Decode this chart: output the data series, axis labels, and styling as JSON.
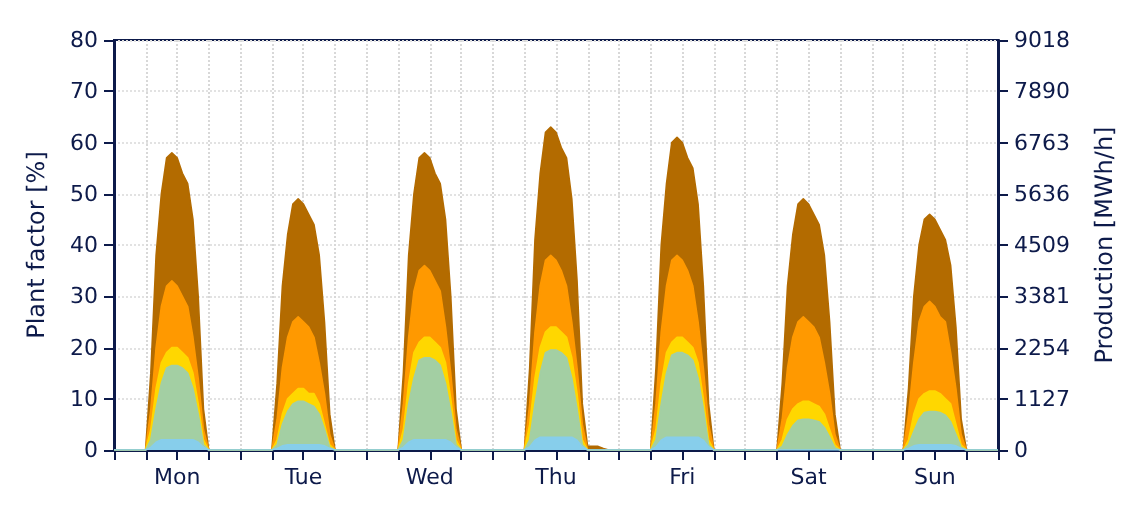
{
  "chart_data": {
    "type": "area",
    "ylabel": "Plant factor [%]",
    "y2label": "Production [MWh/h]",
    "categories": [
      null,
      null,
      null,
      null,
      null,
      null,
      null,
      null,
      null,
      null,
      null,
      null,
      "Mon",
      null,
      null,
      null,
      null,
      null,
      null,
      null,
      null,
      null,
      null,
      null,
      null,
      null,
      null,
      null,
      null,
      null,
      null,
      null,
      null,
      null,
      null,
      null,
      "Tue",
      null,
      null,
      null,
      null,
      null,
      null,
      null,
      null,
      null,
      null,
      null,
      null,
      null,
      null,
      null,
      null,
      null,
      null,
      null,
      null,
      null,
      null,
      null,
      "Wed",
      null,
      null,
      null,
      null,
      null,
      null,
      null,
      null,
      null,
      null,
      null,
      null,
      null,
      null,
      null,
      null,
      null,
      null,
      null,
      null,
      null,
      null,
      null,
      "Thu",
      null,
      null,
      null,
      null,
      null,
      null,
      null,
      null,
      null,
      null,
      null,
      null,
      null,
      null,
      null,
      null,
      null,
      null,
      null,
      null,
      null,
      null,
      null,
      "Fri",
      null,
      null,
      null,
      null,
      null,
      null,
      null,
      null,
      null,
      null,
      null,
      null,
      null,
      null,
      null,
      null,
      null,
      null,
      null,
      null,
      null,
      null,
      null,
      "Sat",
      null,
      null,
      null,
      null,
      null,
      null,
      null,
      null,
      null,
      null,
      null,
      null,
      null,
      null,
      null,
      null,
      null,
      null,
      null,
      null,
      null,
      null,
      null,
      "Sun",
      null,
      null,
      null,
      null,
      null,
      null,
      null,
      null,
      null,
      null,
      null,
      null
    ],
    "series": [
      {
        "color": "#b36b00",
        "values": [
          0,
          0,
          0,
          0,
          0,
          0,
          0,
          15,
          38,
          50,
          57,
          58,
          57,
          54,
          52,
          45,
          30,
          8,
          0,
          0,
          0,
          0,
          0,
          0,
          0,
          0,
          0,
          0,
          0,
          0,
          0,
          13,
          32,
          42,
          48,
          49,
          48,
          46,
          44,
          38,
          25,
          7,
          0,
          0,
          0,
          0,
          0,
          0,
          0,
          0,
          0,
          0,
          0,
          0,
          0,
          15,
          38,
          50,
          57,
          58,
          57,
          54,
          52,
          45,
          30,
          8,
          0,
          0,
          0,
          0,
          0,
          0,
          0,
          0,
          0,
          0,
          0,
          0,
          0,
          16,
          41,
          54,
          62,
          63,
          62,
          59,
          57,
          49,
          33,
          9,
          0.7,
          0.7,
          0.7,
          0.3,
          0,
          0,
          0,
          0,
          0,
          0,
          0,
          0,
          0,
          16,
          40,
          52,
          60,
          61,
          60,
          57,
          55,
          48,
          32,
          9,
          0,
          0,
          0,
          0,
          0,
          0,
          0,
          0,
          0,
          0,
          0,
          0,
          0,
          13,
          32,
          42,
          48,
          49,
          48,
          46,
          44,
          38,
          25,
          7,
          0,
          0,
          0,
          0,
          0,
          0,
          0,
          0,
          0,
          0,
          0,
          0,
          0,
          12,
          30,
          40,
          45,
          46,
          45,
          43,
          41,
          36,
          24,
          6,
          0,
          0,
          0,
          0,
          0,
          0,
          0
        ]
      },
      {
        "color": "#ff9900",
        "values": [
          0,
          0,
          0,
          0,
          0,
          0,
          0,
          8,
          20,
          28,
          32,
          33,
          32,
          30,
          28,
          22,
          14,
          4,
          0,
          0,
          0,
          0,
          0,
          0,
          0,
          0,
          0,
          0,
          0,
          0,
          0,
          6,
          16,
          22,
          25,
          26,
          25,
          24,
          22,
          17,
          11,
          3,
          0,
          0,
          0,
          0,
          0,
          0,
          0,
          0,
          0,
          0,
          0,
          0,
          0,
          9,
          22,
          31,
          35,
          36,
          35,
          33,
          31,
          24,
          15,
          4,
          0,
          0,
          0,
          0,
          0,
          0,
          0,
          0,
          0,
          0,
          0,
          0,
          0,
          9,
          23,
          32,
          37,
          38,
          37,
          35,
          32,
          25,
          16,
          5,
          0,
          0,
          0,
          0,
          0,
          0,
          0,
          0,
          0,
          0,
          0,
          0,
          0,
          9,
          23,
          32,
          37,
          38,
          37,
          35,
          32,
          25,
          16,
          5,
          0,
          0,
          0,
          0,
          0,
          0,
          0,
          0,
          0,
          0,
          0,
          0,
          0,
          6,
          16,
          22,
          25,
          26,
          25,
          24,
          22,
          17,
          11,
          3,
          0,
          0,
          0,
          0,
          0,
          0,
          0,
          0,
          0,
          0,
          0,
          0,
          0,
          7,
          17,
          25,
          28,
          29,
          28,
          26,
          25,
          19,
          12,
          3,
          0,
          0,
          0,
          0,
          0,
          0,
          0
        ]
      },
      {
        "color": "#ffd700",
        "values": [
          0,
          0,
          0,
          0,
          0,
          0,
          0,
          4,
          12,
          17,
          19,
          20,
          20,
          19,
          18,
          15,
          9,
          2,
          0,
          0,
          0,
          0,
          0,
          0,
          0,
          0,
          0,
          0,
          0,
          0,
          0,
          2,
          7,
          10,
          11,
          12,
          12,
          11,
          11,
          9,
          5,
          1,
          0,
          0,
          0,
          0,
          0,
          0,
          0,
          0,
          0,
          0,
          0,
          0,
          0,
          4,
          13,
          19,
          21,
          22,
          22,
          21,
          20,
          17,
          10,
          2,
          0,
          0,
          0,
          0,
          0,
          0,
          0,
          0,
          0,
          0,
          0,
          0,
          0,
          5,
          14,
          20,
          23,
          24,
          24,
          23,
          22,
          18,
          11,
          2,
          0,
          0,
          0,
          0,
          0,
          0,
          0,
          0,
          0,
          0,
          0,
          0,
          0,
          4,
          13,
          19,
          21,
          22,
          22,
          21,
          20,
          17,
          10,
          2,
          0,
          0,
          0,
          0,
          0,
          0,
          0,
          0,
          0,
          0,
          0,
          0,
          0,
          2,
          6,
          8,
          9,
          9.5,
          9.5,
          9,
          8.5,
          7,
          4,
          1,
          0,
          0,
          0,
          0,
          0,
          0,
          0,
          0,
          0,
          0,
          0,
          0,
          0,
          2,
          7,
          10,
          11,
          11.5,
          11.5,
          11,
          10,
          9,
          5,
          1,
          0,
          0,
          0,
          0,
          0,
          0,
          0
        ]
      },
      {
        "color": "#a3cfa3",
        "values": [
          0,
          0,
          0,
          0,
          0,
          0,
          0,
          2,
          8,
          13,
          16,
          16.5,
          16.5,
          16,
          15,
          12,
          7,
          1,
          0,
          0,
          0,
          0,
          0,
          0,
          0,
          0,
          0,
          0,
          0,
          0,
          0,
          1,
          5,
          7.5,
          9,
          9.5,
          9.5,
          9,
          8.5,
          7,
          4,
          0.5,
          0,
          0,
          0,
          0,
          0,
          0,
          0,
          0,
          0,
          0,
          0,
          0,
          0,
          2,
          9,
          14,
          17.5,
          18,
          18,
          17.5,
          16.5,
          13,
          7.5,
          1,
          0,
          0,
          0,
          0,
          0,
          0,
          0,
          0,
          0,
          0,
          0,
          0,
          0,
          2,
          9,
          15,
          19,
          19.5,
          19.5,
          19,
          18,
          14,
          8,
          1,
          0,
          0,
          0,
          0,
          0,
          0,
          0,
          0,
          0,
          0,
          0,
          0,
          0,
          2,
          9,
          15,
          18.5,
          19,
          19,
          18.5,
          17.5,
          14,
          8,
          1,
          0,
          0,
          0,
          0,
          0,
          0,
          0,
          0,
          0,
          0,
          0,
          0,
          0,
          0.7,
          3,
          4.7,
          5.8,
          6,
          6,
          5.8,
          5.5,
          4.4,
          2.5,
          0.4,
          0,
          0,
          0,
          0,
          0,
          0,
          0,
          0,
          0,
          0,
          0,
          0,
          0,
          1,
          3.6,
          6,
          7.3,
          7.5,
          7.5,
          7.3,
          6.8,
          5.5,
          3,
          0.5,
          0,
          0,
          0,
          0,
          0,
          0,
          0
        ]
      },
      {
        "color": "#87ceeb",
        "values": [
          0,
          0,
          0,
          0,
          0,
          0,
          0,
          0.5,
          1.5,
          2,
          2,
          2,
          2,
          2,
          2,
          2,
          1.5,
          0.5,
          0,
          0,
          0,
          0,
          0,
          0,
          0,
          0,
          0,
          0,
          0,
          0,
          0,
          0.3,
          0.8,
          1,
          1,
          1,
          1,
          1,
          1,
          1,
          0.8,
          0.3,
          0,
          0,
          0,
          0,
          0,
          0,
          0,
          0,
          0,
          0,
          0,
          0,
          0,
          0.5,
          1.5,
          2,
          2,
          2,
          2,
          2,
          2,
          2,
          1.5,
          0.5,
          0,
          0,
          0,
          0,
          0,
          0,
          0,
          0,
          0,
          0,
          0,
          0,
          0,
          0.6,
          1.9,
          2.5,
          2.5,
          2.5,
          2.5,
          2.5,
          2.5,
          2.5,
          1.9,
          0.6,
          0,
          0,
          0,
          0,
          0,
          0,
          0,
          0,
          0,
          0,
          0,
          0,
          0,
          0.6,
          1.9,
          2.5,
          2.5,
          2.5,
          2.5,
          2.5,
          2.5,
          2.5,
          1.9,
          0.6,
          0,
          0,
          0,
          0,
          0,
          0,
          0,
          0,
          0,
          0,
          0,
          0,
          0,
          0,
          0,
          0,
          0,
          0,
          0,
          0,
          0,
          0,
          0,
          0,
          0,
          0,
          0,
          0,
          0,
          0,
          0,
          0,
          0,
          0,
          0,
          0,
          0,
          0.3,
          0.8,
          1,
          1,
          1,
          1,
          1,
          1,
          1,
          0.8,
          0.3,
          0,
          0,
          0,
          0,
          0,
          0,
          0
        ]
      }
    ],
    "ylim": [
      0,
      80
    ],
    "yticks": [
      0,
      10,
      20,
      30,
      40,
      50,
      60,
      70,
      80
    ],
    "y2lim": [
      0,
      9018
    ],
    "y2ticks": [
      0,
      1127,
      2254,
      3381,
      4509,
      5636,
      6763,
      7890,
      9018
    ],
    "grid": true
  }
}
